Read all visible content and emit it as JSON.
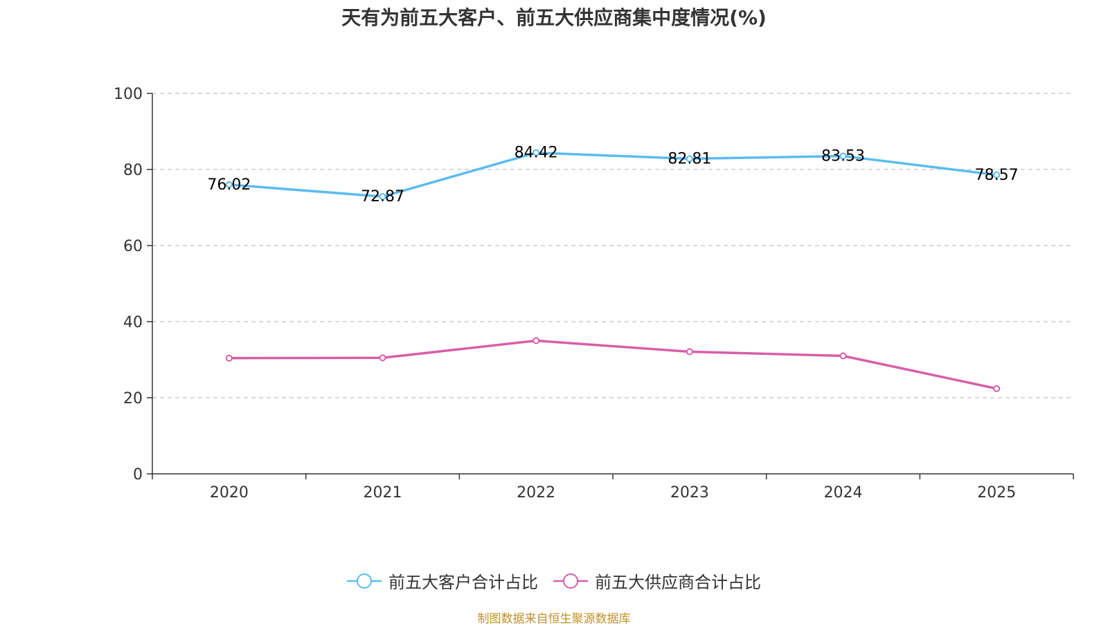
{
  "chart_data": {
    "type": "line",
    "title": "天有为前五大客户、前五大供应商集中度情况(%)",
    "categories": [
      "2020",
      "2021",
      "2022",
      "2023",
      "2024",
      "2025"
    ],
    "ylim": [
      0,
      100
    ],
    "yticks": [
      0,
      20,
      40,
      60,
      80,
      100
    ],
    "grid": true,
    "legend_position": "bottom",
    "series": [
      {
        "name": "前五大客户合计占比",
        "color": "#5bbcf0",
        "values": [
          76.02,
          72.87,
          84.42,
          82.81,
          83.53,
          78.57
        ],
        "show_labels": true
      },
      {
        "name": "前五大供应商合计占比",
        "color": "#d85ea8",
        "values": [
          30.4,
          30.5,
          35.0,
          32.1,
          31.0,
          22.4
        ],
        "show_labels": false
      }
    ]
  },
  "source": "制图数据来自恒生聚源数据库"
}
